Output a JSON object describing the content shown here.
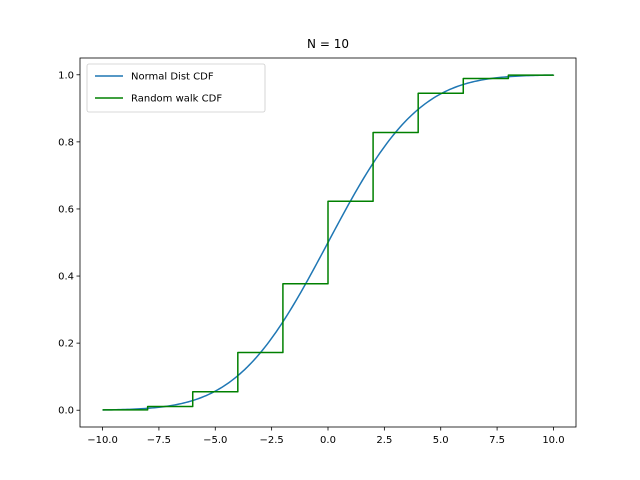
{
  "chart_data": {
    "type": "line",
    "title": "N = 10",
    "xlabel": "",
    "ylabel": "",
    "xlim": [
      -11,
      11
    ],
    "ylim": [
      -0.05,
      1.05
    ],
    "x_ticks": [
      -10.0,
      -7.5,
      -5.0,
      -2.5,
      0.0,
      2.5,
      5.0,
      7.5,
      10.0
    ],
    "x_tick_labels": [
      "−10.0",
      "−7.5",
      "−5.0",
      "−2.5",
      "0.0",
      "2.5",
      "5.0",
      "7.5",
      "10.0"
    ],
    "y_ticks": [
      0.0,
      0.2,
      0.4,
      0.6,
      0.8,
      1.0
    ],
    "y_tick_labels": [
      "0.0",
      "0.2",
      "0.4",
      "0.6",
      "0.8",
      "1.0"
    ],
    "grid": false,
    "legend_position": "top-left",
    "series": [
      {
        "name": "Normal Dist CDF",
        "color": "#1f77b4",
        "kind": "normal-cdf",
        "mean": 0,
        "sd": 3.1623,
        "x_range": [
          -10,
          10
        ]
      },
      {
        "name": "Random walk CDF",
        "color": "#008000",
        "kind": "step",
        "x": [
          -10,
          -8,
          -6,
          -4,
          -2,
          0,
          2,
          4,
          6,
          8,
          10
        ],
        "y": [
          0.001,
          0.011,
          0.055,
          0.172,
          0.377,
          0.623,
          0.828,
          0.945,
          0.989,
          0.999,
          1.0
        ]
      }
    ]
  }
}
